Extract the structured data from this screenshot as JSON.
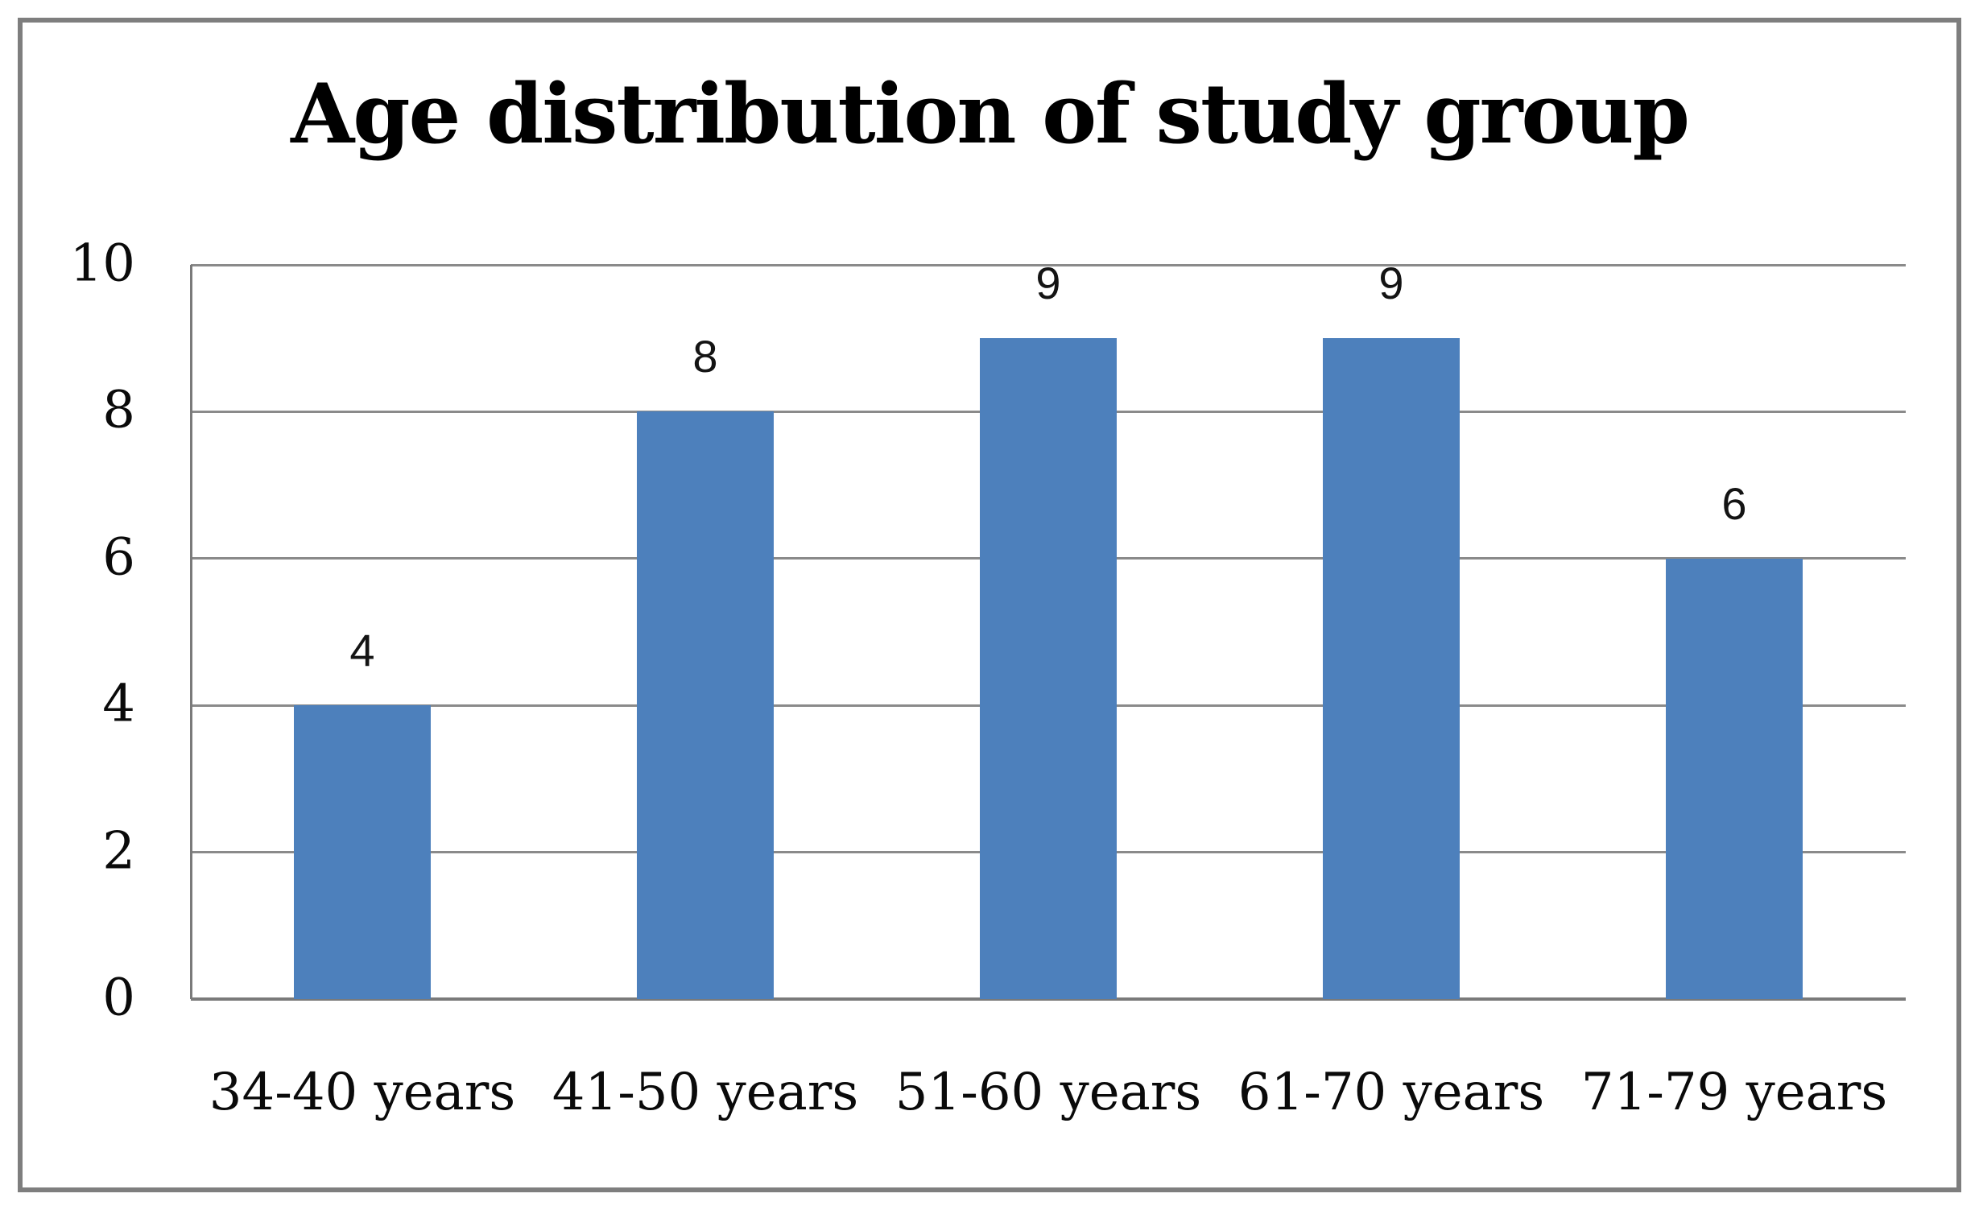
{
  "chart_data": {
    "type": "bar",
    "title": "Age distribution of study group",
    "categories": [
      "34-40 years",
      "41-50 years",
      "51-60 years",
      "61-70 years",
      "71-79 years"
    ],
    "values": [
      4,
      8,
      9,
      9,
      6
    ],
    "data_labels": [
      "4",
      "8",
      "9",
      "9",
      "6"
    ],
    "xlabel": "",
    "ylabel": "",
    "ylim": [
      0,
      10
    ],
    "yticks": [
      0,
      2,
      4,
      6,
      8,
      10
    ],
    "grid": "horizontal-major",
    "legend": "none",
    "colors": {
      "bar_fill": "#4d80bc",
      "gridline": "#8a8a8a",
      "axis_line": "#7a7a7a",
      "frame_border": "#7e7e7e",
      "text": "#0a0a0a",
      "background": "#ffffff"
    }
  }
}
